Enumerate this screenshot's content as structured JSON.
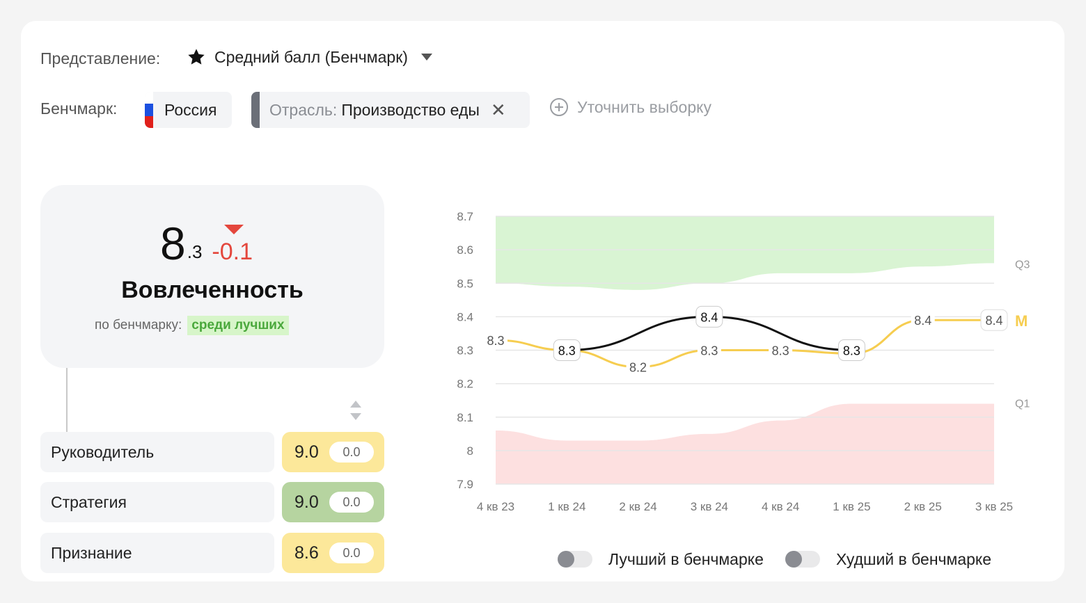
{
  "filters": {
    "view_label": "Представление:",
    "view_value": "Средний балл (Бенчмарк)",
    "benchmark_label": "Бенчмарк:",
    "country": "Россия",
    "industry_key": "Отрасль:",
    "industry_value": "Производство еды",
    "remove_symbol": "✕",
    "refine_label": "Уточнить выборку"
  },
  "score": {
    "integer": "8",
    "fraction": ".3",
    "delta": "-0.1",
    "title": "Вовлеченность",
    "sub_label": "по бенчмарку:",
    "badge": "среди лучших"
  },
  "factors": [
    {
      "name": "Руководитель",
      "score": "9.0",
      "delta": "0.0",
      "color": "#fce89a"
    },
    {
      "name": "Стратегия",
      "score": "9.0",
      "delta": "0.0",
      "color": "#b6d4a0"
    },
    {
      "name": "Признание",
      "score": "8.6",
      "delta": "0.0",
      "color": "#fce89a"
    }
  ],
  "toggles": {
    "best_label": "Лучший в бенчмарке",
    "worst_label": "Худший в бенчмарке"
  },
  "colors": {
    "accent_red": "#e4473d",
    "company_line": "#111111",
    "benchmark_line": "#f6cd50",
    "top_band": "#d9f4d3",
    "bottom_band": "#fde0e0"
  },
  "chart_data": {
    "type": "line",
    "categories": [
      "4 кв 23",
      "1 кв 24",
      "2 кв 24",
      "3 кв 24",
      "4 кв 24",
      "1 кв 25",
      "2 кв 25",
      "3 кв 25"
    ],
    "ylim": [
      7.9,
      8.7
    ],
    "yticks": [
      "8.7",
      "8.6",
      "8.5",
      "8.4",
      "8.3",
      "8.2",
      "8.1",
      "8",
      "7.9"
    ],
    "grid": true,
    "series": [
      {
        "values": [
          null,
          8.3,
          null,
          8.4,
          null,
          8.3,
          null,
          null
        ],
        "labels": [
          "",
          "8.3",
          "",
          "8.4",
          "",
          "8.3",
          "",
          ""
        ]
      },
      {
        "values": [
          8.33,
          8.3,
          8.25,
          8.3,
          8.3,
          8.29,
          8.39,
          8.39
        ],
        "labels": [
          "8.3",
          "",
          "8.2",
          "8.3",
          "8.3",
          "",
          "8.4",
          "8.4"
        ]
      }
    ],
    "bands": {
      "q3_label": "Q3",
      "q3": [
        8.5,
        8.49,
        8.48,
        8.5,
        8.53,
        8.53,
        8.55,
        8.56
      ],
      "q1_label": "Q1",
      "q1": [
        8.06,
        8.03,
        8.03,
        8.05,
        8.09,
        8.14,
        8.14,
        8.14
      ],
      "median_label": "M"
    }
  }
}
